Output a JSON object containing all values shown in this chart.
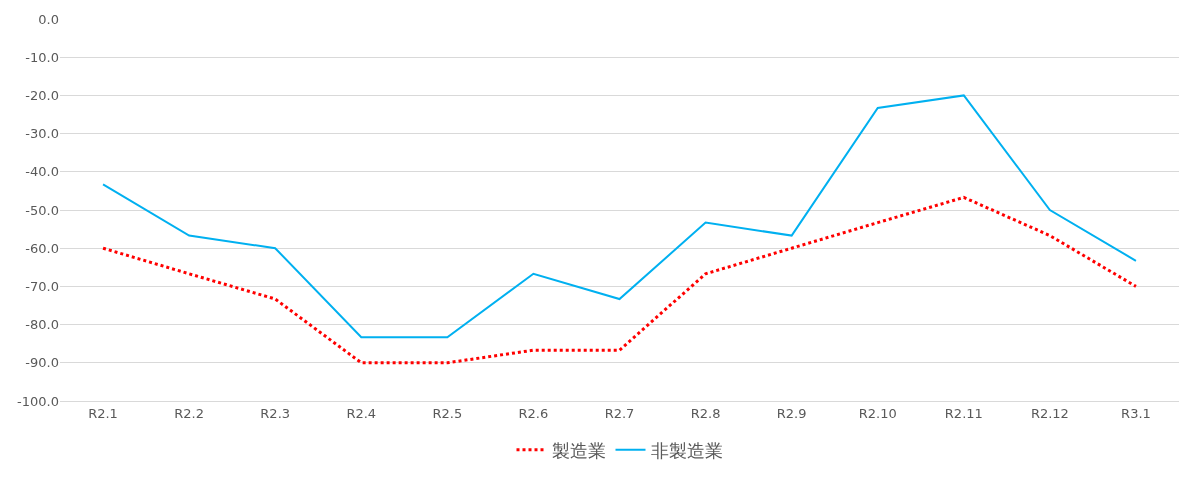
{
  "chart_data": {
    "type": "line",
    "categories": [
      "R2.1",
      "R2.2",
      "R2.3",
      "R2.4",
      "R2.5",
      "R2.6",
      "R2.7",
      "R2.8",
      "R2.9",
      "R2.10",
      "R2.11",
      "R2.12",
      "R3.1"
    ],
    "series": [
      {
        "name": "製造業",
        "color": "#ff0000",
        "line_style": "dotted",
        "values": [
          -60,
          -66.7,
          -73.3,
          -90,
          -90,
          -86.7,
          -86.7,
          -66.7,
          -60,
          -53.3,
          -46.7,
          -56.7,
          -70
        ]
      },
      {
        "name": "非製造業",
        "color": "#00b0f0",
        "line_style": "solid",
        "values": [
          -43.3,
          -56.7,
          -60,
          -83.3,
          -83.3,
          -66.7,
          -73.3,
          -53.3,
          -56.7,
          -23.3,
          -20,
          -50,
          -63.3
        ]
      }
    ],
    "ylim": [
      -100,
      0
    ],
    "yticks": [
      {
        "value": 0,
        "label": "0.0"
      },
      {
        "value": -10,
        "label": "-10.0"
      },
      {
        "value": -20,
        "label": "-20.0"
      },
      {
        "value": -30,
        "label": "-30.0"
      },
      {
        "value": -40,
        "label": "-40.0"
      },
      {
        "value": -50,
        "label": "-50.0"
      },
      {
        "value": -60,
        "label": "-60.0"
      },
      {
        "value": -70,
        "label": "-70.0"
      },
      {
        "value": -80,
        "label": "-80.0"
      },
      {
        "value": -90,
        "label": "-90.0"
      },
      {
        "value": -100,
        "label": "-100.0"
      }
    ],
    "grid": "y",
    "legend": "bottom",
    "marker": "none"
  }
}
